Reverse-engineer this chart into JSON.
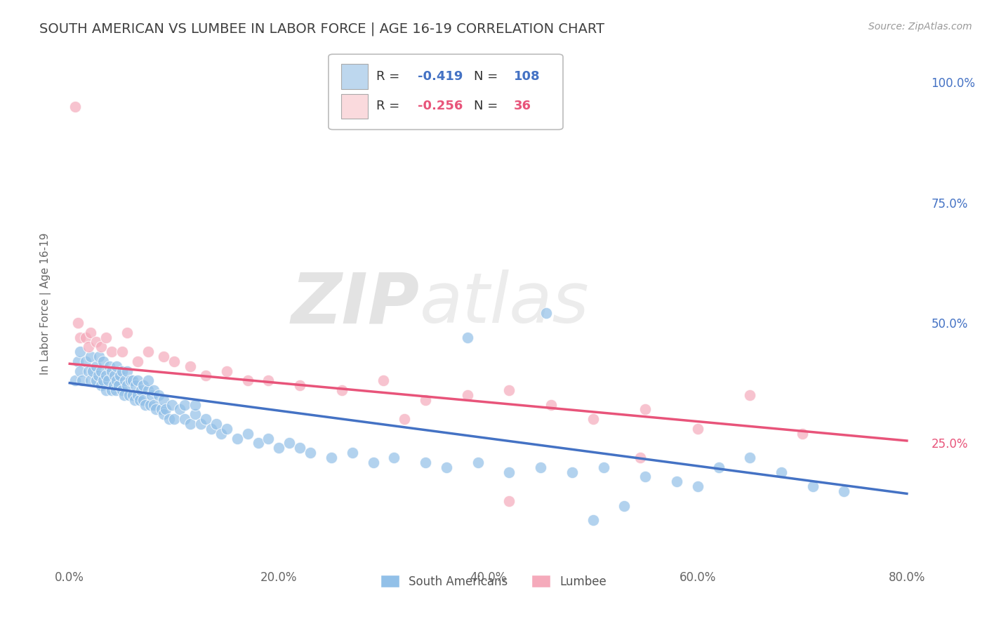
{
  "title": "SOUTH AMERICAN VS LUMBEE IN LABOR FORCE | AGE 16-19 CORRELATION CHART",
  "source": "Source: ZipAtlas.com",
  "ylabel": "In Labor Force | Age 16-19",
  "xlim": [
    -0.01,
    0.82
  ],
  "ylim": [
    0.0,
    1.08
  ],
  "xtick_labels": [
    "0.0%",
    "20.0%",
    "40.0%",
    "60.0%",
    "80.0%"
  ],
  "xtick_vals": [
    0.0,
    0.2,
    0.4,
    0.6,
    0.8
  ],
  "ytick_labels_right": [
    "100.0%",
    "75.0%",
    "50.0%",
    "25.0%"
  ],
  "ytick_vals_right": [
    1.0,
    0.75,
    0.5,
    0.25
  ],
  "blue_color": "#92C0E8",
  "pink_color": "#F5AABB",
  "blue_line_color": "#4472C4",
  "pink_line_color": "#E8547A",
  "legend_blue_fill": "#BDD7EE",
  "legend_pink_fill": "#FADADD",
  "R_blue": "-0.419",
  "N_blue": "108",
  "R_pink": "-0.256",
  "N_pink": "36",
  "watermark_zip": "ZIP",
  "watermark_atlas": "atlas",
  "background_color": "#FFFFFF",
  "grid_color": "#DDDDDD",
  "title_color": "#404040",
  "right_axis_blue": "#4472C4",
  "right_axis_pink": "#E8547A",
  "sa_x": [
    0.005,
    0.008,
    0.01,
    0.01,
    0.012,
    0.015,
    0.018,
    0.02,
    0.02,
    0.022,
    0.025,
    0.025,
    0.027,
    0.028,
    0.03,
    0.03,
    0.032,
    0.032,
    0.035,
    0.035,
    0.037,
    0.038,
    0.04,
    0.04,
    0.042,
    0.043,
    0.044,
    0.045,
    0.045,
    0.047,
    0.048,
    0.05,
    0.05,
    0.052,
    0.053,
    0.055,
    0.055,
    0.057,
    0.058,
    0.06,
    0.06,
    0.062,
    0.063,
    0.065,
    0.065,
    0.067,
    0.068,
    0.07,
    0.07,
    0.072,
    0.075,
    0.075,
    0.077,
    0.078,
    0.08,
    0.08,
    0.082,
    0.085,
    0.088,
    0.09,
    0.09,
    0.092,
    0.095,
    0.098,
    0.1,
    0.105,
    0.11,
    0.11,
    0.115,
    0.12,
    0.12,
    0.125,
    0.13,
    0.135,
    0.14,
    0.145,
    0.15,
    0.16,
    0.17,
    0.18,
    0.19,
    0.2,
    0.21,
    0.22,
    0.23,
    0.25,
    0.27,
    0.29,
    0.31,
    0.34,
    0.36,
    0.39,
    0.42,
    0.45,
    0.48,
    0.51,
    0.455,
    0.38,
    0.5,
    0.53,
    0.55,
    0.58,
    0.6,
    0.62,
    0.65,
    0.68,
    0.71,
    0.74
  ],
  "sa_y": [
    0.38,
    0.42,
    0.4,
    0.44,
    0.38,
    0.42,
    0.4,
    0.38,
    0.43,
    0.4,
    0.38,
    0.41,
    0.39,
    0.43,
    0.37,
    0.4,
    0.38,
    0.42,
    0.36,
    0.39,
    0.38,
    0.41,
    0.36,
    0.4,
    0.37,
    0.39,
    0.36,
    0.38,
    0.41,
    0.37,
    0.39,
    0.36,
    0.4,
    0.35,
    0.38,
    0.37,
    0.4,
    0.35,
    0.38,
    0.35,
    0.38,
    0.34,
    0.37,
    0.35,
    0.38,
    0.34,
    0.36,
    0.34,
    0.37,
    0.33,
    0.36,
    0.38,
    0.33,
    0.35,
    0.33,
    0.36,
    0.32,
    0.35,
    0.32,
    0.31,
    0.34,
    0.32,
    0.3,
    0.33,
    0.3,
    0.32,
    0.3,
    0.33,
    0.29,
    0.31,
    0.33,
    0.29,
    0.3,
    0.28,
    0.29,
    0.27,
    0.28,
    0.26,
    0.27,
    0.25,
    0.26,
    0.24,
    0.25,
    0.24,
    0.23,
    0.22,
    0.23,
    0.21,
    0.22,
    0.21,
    0.2,
    0.21,
    0.19,
    0.2,
    0.19,
    0.2,
    0.52,
    0.47,
    0.09,
    0.12,
    0.18,
    0.17,
    0.16,
    0.2,
    0.22,
    0.19,
    0.16,
    0.15
  ],
  "lu_x": [
    0.005,
    0.008,
    0.01,
    0.015,
    0.018,
    0.02,
    0.025,
    0.03,
    0.035,
    0.04,
    0.05,
    0.055,
    0.065,
    0.075,
    0.09,
    0.1,
    0.115,
    0.13,
    0.15,
    0.17,
    0.19,
    0.22,
    0.26,
    0.3,
    0.34,
    0.38,
    0.42,
    0.46,
    0.5,
    0.55,
    0.6,
    0.65,
    0.7,
    0.545,
    0.32,
    0.42
  ],
  "lu_y": [
    0.95,
    0.5,
    0.47,
    0.47,
    0.45,
    0.48,
    0.46,
    0.45,
    0.47,
    0.44,
    0.44,
    0.48,
    0.42,
    0.44,
    0.43,
    0.42,
    0.41,
    0.39,
    0.4,
    0.38,
    0.38,
    0.37,
    0.36,
    0.38,
    0.34,
    0.35,
    0.36,
    0.33,
    0.3,
    0.32,
    0.28,
    0.35,
    0.27,
    0.22,
    0.3,
    0.13
  ],
  "sa_line_x0": 0.0,
  "sa_line_y0": 0.375,
  "sa_line_x1": 0.8,
  "sa_line_y1": 0.145,
  "lu_line_x0": 0.0,
  "lu_line_y0": 0.415,
  "lu_line_x1": 0.8,
  "lu_line_y1": 0.255
}
